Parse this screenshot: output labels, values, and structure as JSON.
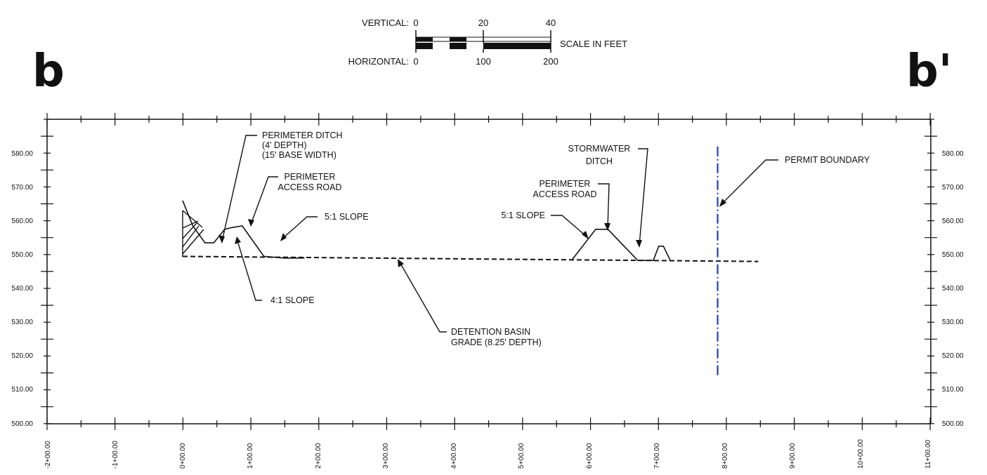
{
  "section": {
    "start_label": "b",
    "end_label": "b'"
  },
  "scale_bar": {
    "vertical_label": "VERTICAL:",
    "vertical_ticks": [
      "0",
      "20",
      "40"
    ],
    "horizontal_label": "HORIZONTAL:",
    "horizontal_ticks": [
      "0",
      "100",
      "200"
    ],
    "units_label": "SCALE IN FEET"
  },
  "elevation_labels": [
    "580.00",
    "570.00",
    "560.00",
    "550.00",
    "540.00",
    "530.00",
    "520.00",
    "510.00",
    "500.00"
  ],
  "station_labels": [
    "-2+00.00",
    "-1+00.00",
    "0+00.00",
    "1+00.00",
    "2+00.00",
    "3+00.00",
    "4+00.00",
    "5+00.00",
    "6+00.00",
    "7+00.00",
    "8+00.00",
    "9+00.00",
    "10+00.00",
    "11+00.00"
  ],
  "callouts": {
    "perimeter_ditch": [
      "PERIMETER DITCH",
      "(4' DEPTH)",
      "(15' BASE WIDTH)"
    ],
    "perimeter_road_left": [
      "PERIMETER",
      "ACCESS ROAD"
    ],
    "slope_left": "5:1 SLOPE",
    "slope_4to1": "4:1 SLOPE",
    "detention_basin": [
      "DETENTION BASIN",
      "GRADE (8.25' DEPTH)"
    ],
    "slope_right": "5:1 SLOPE",
    "perimeter_road_right": [
      "PERIMETER",
      "ACCESS ROAD"
    ],
    "stormwater_ditch": [
      "STORMWATER",
      "DITCH"
    ],
    "permit_boundary": "PERMIT BOUNDARY"
  },
  "profile": {
    "ground_station_ft": [
      0,
      15,
      33,
      46,
      62,
      72,
      88,
      120,
      150,
      180
    ],
    "ground_elev_ft": [
      566,
      558.5,
      553.5,
      553.5,
      557.5,
      558,
      558.5,
      549.5,
      549,
      549
    ],
    "basin_grade_start": {
      "station_ft": 0,
      "elev_ft": 549.5
    },
    "basin_grade_end": {
      "station_ft": 850,
      "elev_ft": 548
    },
    "right_berm_station_ft": [
      575,
      610,
      628,
      672,
      695,
      703,
      710,
      720
    ],
    "right_berm_elev_ft": [
      548.5,
      557.5,
      557.5,
      548.3,
      548.3,
      552.5,
      552.5,
      548.3
    ],
    "permit_boundary_station_ft": 790,
    "permit_boundary_elev_range_ft": [
      514,
      582
    ]
  },
  "colors": {
    "line": "#111111",
    "boundary": "#1f3fbf",
    "grid": "#bbbbbb"
  }
}
